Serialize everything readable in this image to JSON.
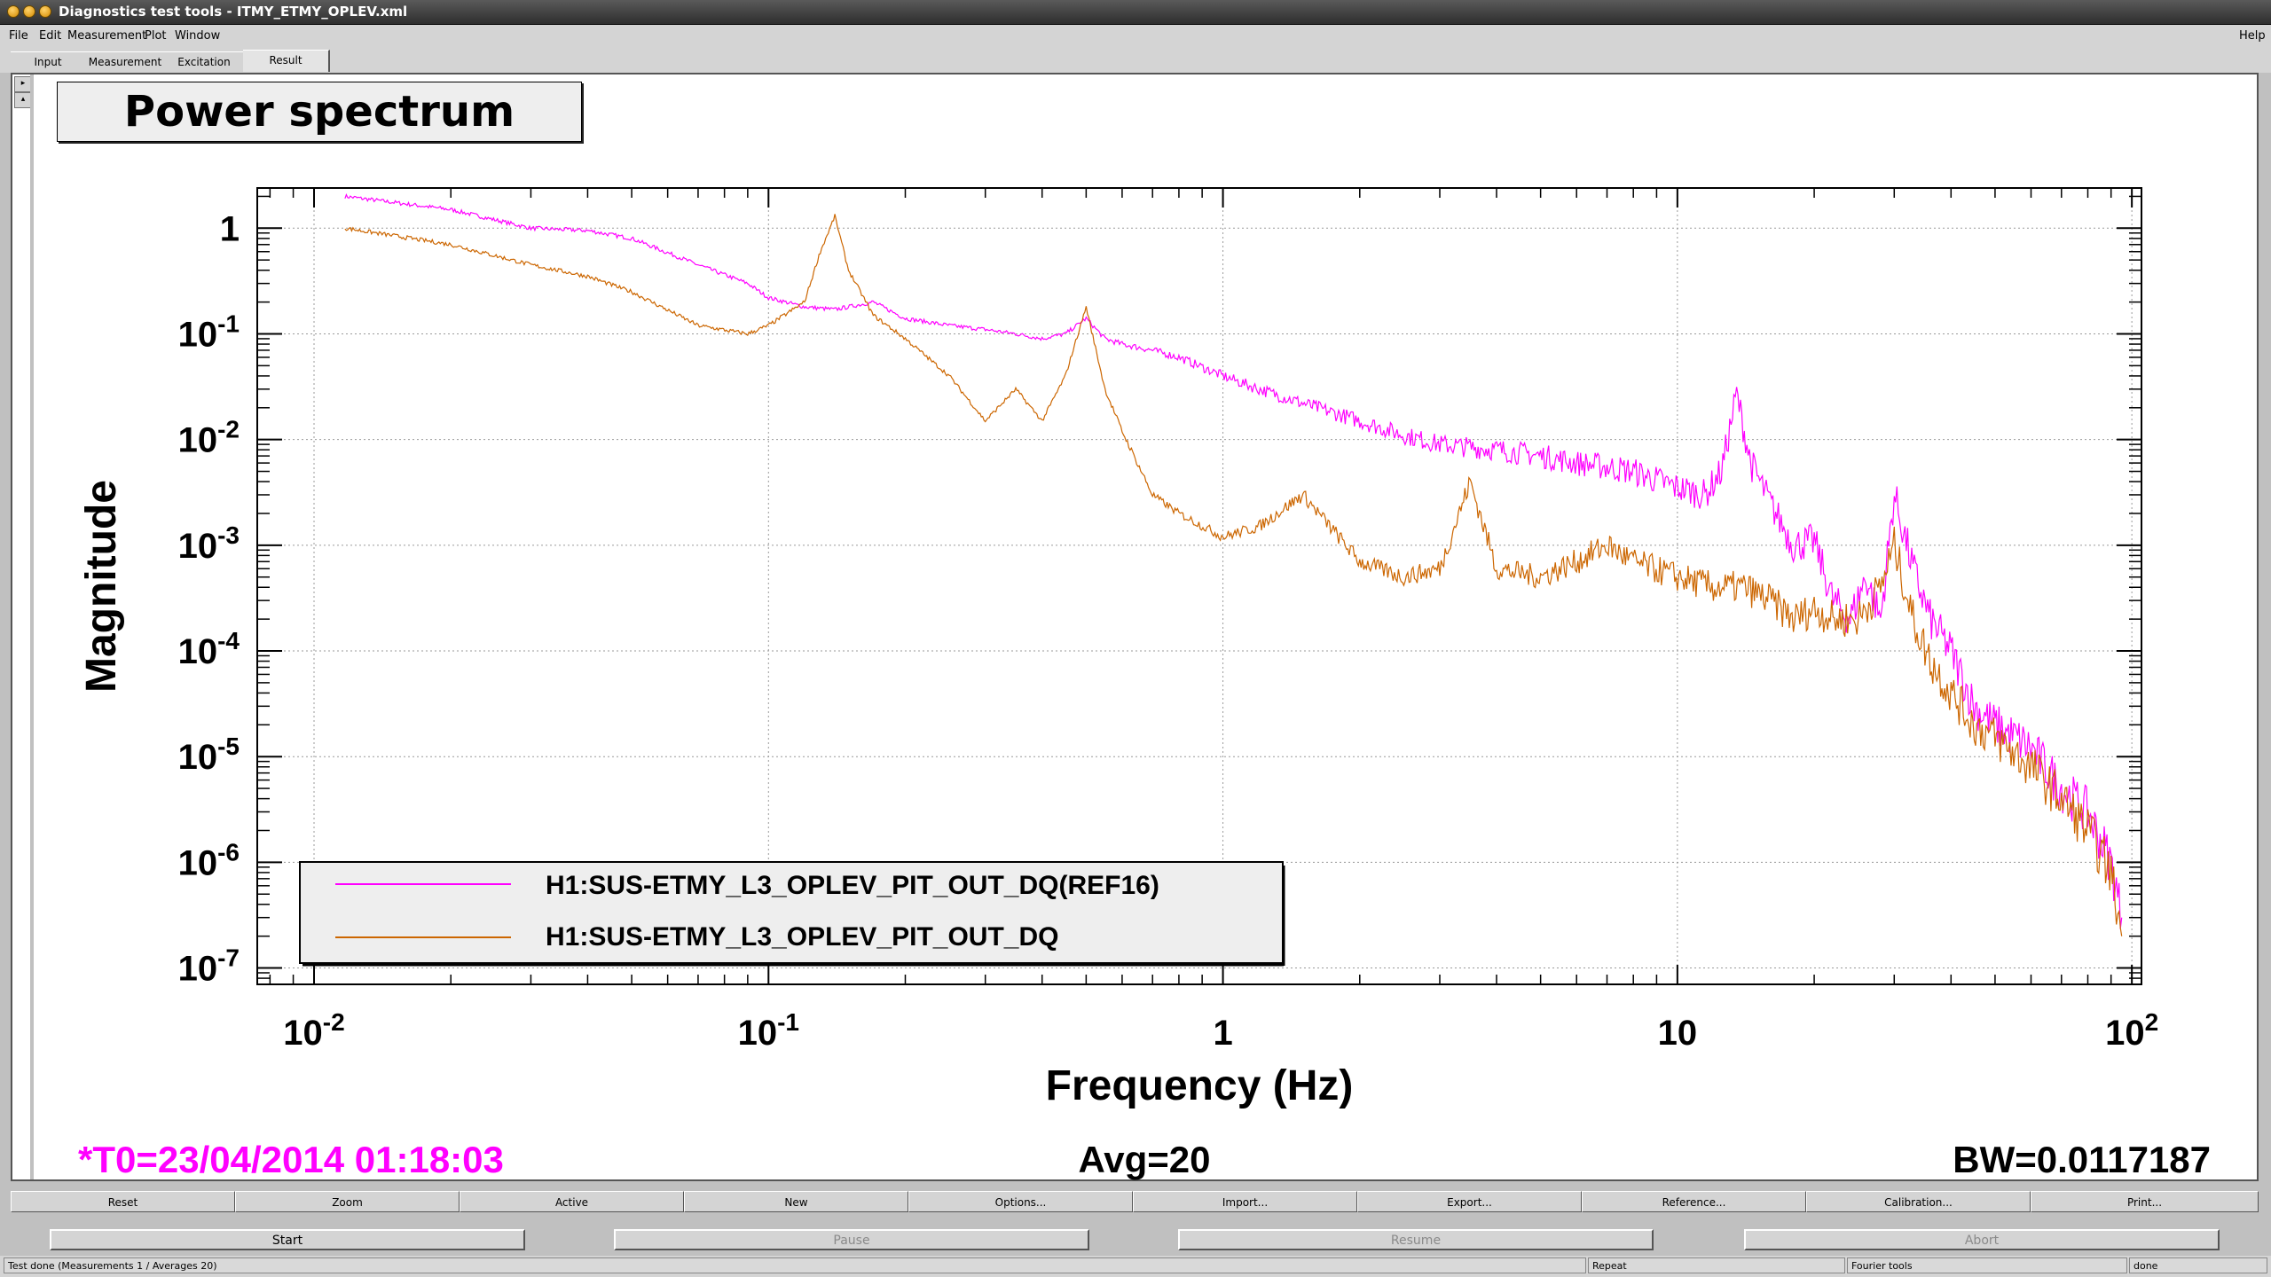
{
  "window": {
    "title": "Diagnostics test tools - ITMY_ETMY_OPLEV.xml"
  },
  "menu": {
    "file": "File",
    "edit": "Edit",
    "measurement": "Measurement",
    "plot": "Plot",
    "window": "Window",
    "help": "Help"
  },
  "tabs": [
    {
      "label": "Input"
    },
    {
      "label": "Measurement"
    },
    {
      "label": "Excitation"
    },
    {
      "label": "Result"
    }
  ],
  "active_tab": "Result",
  "plot": {
    "title": "Power spectrum",
    "t0": "*T0=23/04/2014 01:18:03",
    "avg": "Avg=20",
    "bw": "BW=0.0117187",
    "colors": {
      "ref": "#ff00ff",
      "current": "#cc6600"
    }
  },
  "chart_data": {
    "type": "line",
    "title": "Power spectrum",
    "xlabel": "Frequency (Hz)",
    "ylabel": "Magnitude",
    "xscale": "log",
    "yscale": "log",
    "xlim": [
      0.0075,
      105
    ],
    "ylim": [
      7e-08,
      2.4
    ],
    "grid": true,
    "legend": "bottom-left",
    "x_tick_labels": [
      {
        "v": 0.01,
        "base": "10",
        "exp": "-2"
      },
      {
        "v": 0.1,
        "base": "10",
        "exp": "-1"
      },
      {
        "v": 1,
        "base": "1",
        "exp": ""
      },
      {
        "v": 10,
        "base": "10",
        "exp": ""
      },
      {
        "v": 100,
        "base": "10",
        "exp": "2"
      }
    ],
    "y_tick_labels": [
      {
        "v": 1,
        "base": "1",
        "exp": ""
      },
      {
        "v": 0.1,
        "base": "10",
        "exp": "-1"
      },
      {
        "v": 0.01,
        "base": "10",
        "exp": "-2"
      },
      {
        "v": 0.001,
        "base": "10",
        "exp": "-3"
      },
      {
        "v": 0.0001,
        "base": "10",
        "exp": "-4"
      },
      {
        "v": 1e-05,
        "base": "10",
        "exp": "-5"
      },
      {
        "v": 1e-06,
        "base": "10",
        "exp": "-6"
      },
      {
        "v": 1e-07,
        "base": "10",
        "exp": "-7"
      }
    ],
    "series": [
      {
        "name": "H1:SUS-ETMY_L3_OPLEV_PIT_OUT_DQ(REF16)",
        "color": "#ff00ff",
        "x": [
          0.0117,
          0.02,
          0.03,
          0.04,
          0.05,
          0.07,
          0.09,
          0.1,
          0.12,
          0.14,
          0.17,
          0.2,
          0.25,
          0.3,
          0.35,
          0.4,
          0.45,
          0.5,
          0.55,
          0.6,
          0.7,
          0.8,
          1.0,
          1.2,
          1.5,
          2.0,
          2.5,
          3.0,
          4.0,
          5.0,
          6.0,
          7.0,
          8.0,
          10.0,
          11.5,
          12.5,
          13.5,
          14.5,
          16.0,
          18.0,
          20.0,
          22.0,
          24.0,
          26.0,
          28.0,
          30.0,
          33.0,
          36.0,
          40.0,
          45.0,
          50.0,
          60.0,
          70.0,
          80.0,
          90.0,
          95.0
        ],
        "y": [
          2.0,
          1.5,
          1.0,
          0.95,
          0.8,
          0.45,
          0.3,
          0.22,
          0.18,
          0.17,
          0.2,
          0.14,
          0.12,
          0.11,
          0.1,
          0.09,
          0.1,
          0.14,
          0.09,
          0.08,
          0.07,
          0.06,
          0.04,
          0.03,
          0.022,
          0.015,
          0.011,
          0.009,
          0.008,
          0.007,
          0.006,
          0.0055,
          0.005,
          0.0035,
          0.003,
          0.005,
          0.027,
          0.006,
          0.0025,
          0.001,
          0.0011,
          0.0003,
          0.0002,
          0.0005,
          0.0002,
          0.003,
          0.0006,
          0.0002,
          0.0001,
          3e-05,
          2e-05,
          1.2e-05,
          5e-06,
          3e-06,
          1e-06,
          3e-07
        ]
      },
      {
        "name": "H1:SUS-ETMY_L3_OPLEV_PIT_OUT_DQ",
        "color": "#cc6600",
        "x": [
          0.0117,
          0.02,
          0.03,
          0.04,
          0.05,
          0.07,
          0.09,
          0.1,
          0.12,
          0.13,
          0.14,
          0.15,
          0.17,
          0.2,
          0.25,
          0.3,
          0.35,
          0.4,
          0.45,
          0.5,
          0.55,
          0.6,
          0.7,
          0.8,
          1.0,
          1.2,
          1.5,
          2.0,
          2.5,
          3.0,
          3.5,
          4.0,
          5.0,
          6.0,
          7.0,
          8.0,
          10.0,
          12.0,
          14.0,
          16.0,
          18.0,
          20.0,
          22.0,
          25.0,
          28.0,
          30.0,
          33.0,
          36.0,
          40.0,
          45.0,
          50.0,
          60.0,
          70.0,
          80.0,
          90.0,
          95.0
        ],
        "y": [
          1.0,
          0.7,
          0.45,
          0.35,
          0.25,
          0.12,
          0.1,
          0.12,
          0.2,
          0.6,
          1.3,
          0.4,
          0.15,
          0.09,
          0.04,
          0.015,
          0.03,
          0.015,
          0.04,
          0.18,
          0.03,
          0.012,
          0.003,
          0.002,
          0.0012,
          0.0015,
          0.003,
          0.0007,
          0.0005,
          0.0006,
          0.004,
          0.0006,
          0.0005,
          0.0007,
          0.001,
          0.0007,
          0.0005,
          0.0004,
          0.0004,
          0.0003,
          0.0002,
          0.00025,
          0.0002,
          0.0002,
          0.0004,
          0.001,
          0.0002,
          8e-05,
          4e-05,
          2e-05,
          1.5e-05,
          8e-06,
          4e-06,
          2e-06,
          8e-07,
          2e-07
        ]
      }
    ]
  },
  "buttons": {
    "reset": "Reset",
    "zoom": "Zoom",
    "active": "Active",
    "new": "New",
    "options": "Options...",
    "import": "Import...",
    "export": "Export...",
    "reference": "Reference...",
    "calibration": "Calibration...",
    "print": "Print..."
  },
  "controls": {
    "start": "Start",
    "pause": "Pause",
    "resume": "Resume",
    "abort": "Abort"
  },
  "status": {
    "message": "Test done (Measurements 1 / Averages 20)",
    "repeat": "Repeat",
    "tool": "Fourier tools",
    "state": "done"
  }
}
